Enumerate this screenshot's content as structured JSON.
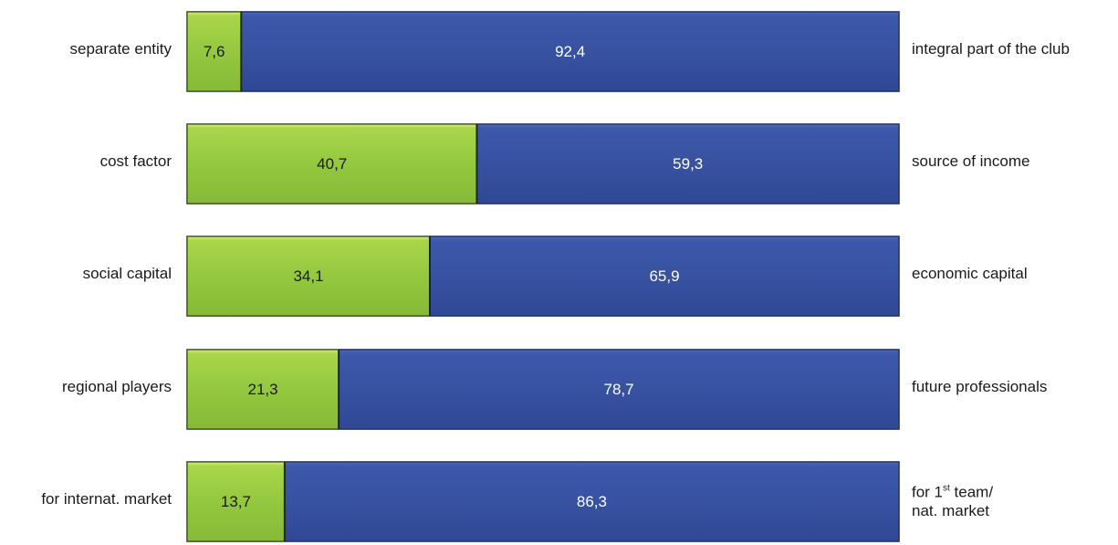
{
  "chart_data": {
    "type": "bar",
    "orientation": "horizontal",
    "stacked": true,
    "xlim": [
      0,
      100
    ],
    "rows": [
      {
        "left_label": "separate entity",
        "right_label": "integral part of the club",
        "left_value": 7.6,
        "right_value": 92.4,
        "left_text": "7,6",
        "right_text": "92,4"
      },
      {
        "left_label": "cost factor",
        "right_label": "source of income",
        "left_value": 40.7,
        "right_value": 59.3,
        "left_text": "40,7",
        "right_text": "59,3"
      },
      {
        "left_label": "social capital",
        "right_label": "economic capital",
        "left_value": 34.1,
        "right_value": 65.9,
        "left_text": "34,1",
        "right_text": "65,9"
      },
      {
        "left_label": "regional players",
        "right_label": "future professionals",
        "left_value": 21.3,
        "right_value": 78.7,
        "left_text": "21,3",
        "right_text": "78,7"
      },
      {
        "left_label": "for internat. market",
        "right_label": "for 1st team/ nat. market",
        "left_value": 13.7,
        "right_value": 86.3,
        "left_text": "13,7",
        "right_text": "86,3"
      }
    ],
    "last_right_label_parts": {
      "line1_pre": "for 1",
      "line1_sup": "st",
      "line1_post": " team/",
      "line2": "nat. market"
    },
    "colors": {
      "left": "#92c640",
      "right": "#3a55a4"
    },
    "grid": false,
    "legend": "none"
  }
}
